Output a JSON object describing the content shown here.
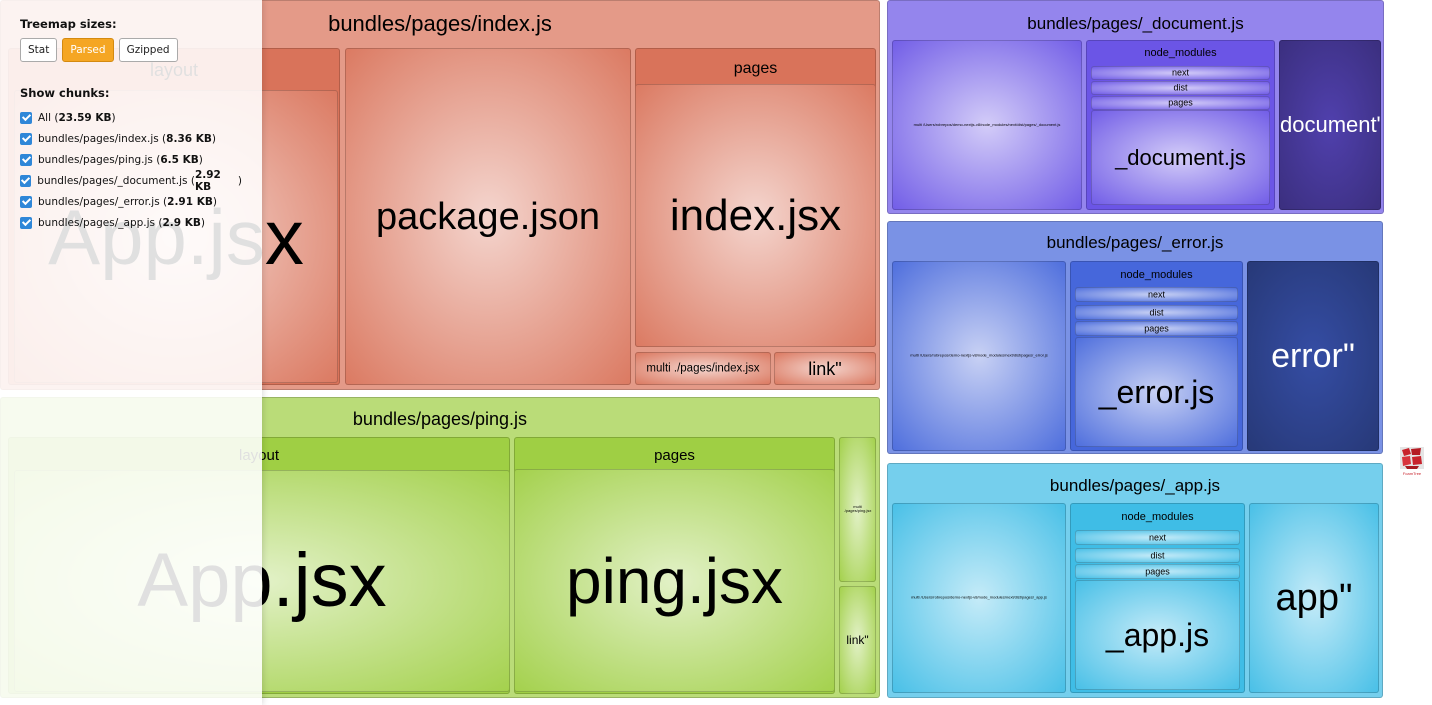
{
  "sidebar": {
    "sizes_title": "Treemap sizes:",
    "size_buttons": [
      {
        "label": "Stat",
        "active": false
      },
      {
        "label": "Parsed",
        "active": true
      },
      {
        "label": "Gzipped",
        "active": false
      }
    ],
    "chunks_title": "Show chunks:",
    "chunks": [
      {
        "name": "All",
        "size": "23.59 KB",
        "checked": true
      },
      {
        "name": "bundles/pages/index.js",
        "size": "8.36 KB",
        "checked": true
      },
      {
        "name": "bundles/pages/ping.js",
        "size": "6.5 KB",
        "checked": true
      },
      {
        "name": "bundles/pages/_document.js",
        "size": "2.92 KB",
        "checked": true
      },
      {
        "name": "bundles/pages/_error.js",
        "size": "2.91 KB",
        "checked": true
      },
      {
        "name": "bundles/pages/_app.js",
        "size": "2.9 KB",
        "checked": true
      }
    ]
  },
  "colors": {
    "index": "#d9735a",
    "ping": "#9fcf44",
    "document": "#6b55e6",
    "error": "#4667db",
    "app": "#3fbde6",
    "gray": "#d6d6d6"
  },
  "treemap": [
    {
      "id": "index",
      "label": "bundles/pages/index.js",
      "children": [
        {
          "id": "index-layout",
          "label": "layout",
          "children": [
            {
              "label": "App.jsx"
            }
          ]
        },
        {
          "label": "package.json"
        },
        {
          "id": "index-pages",
          "label": "pages",
          "children": [
            {
              "label": "index.jsx"
            }
          ]
        },
        {
          "label": "multi ./pages/index.jsx"
        },
        {
          "label": "link\""
        }
      ]
    },
    {
      "id": "ping",
      "label": "bundles/pages/ping.js",
      "children": [
        {
          "label": "layout",
          "children": [
            {
              "label": "App.jsx"
            }
          ]
        },
        {
          "label": "pages",
          "children": [
            {
              "label": "ping.jsx"
            }
          ]
        },
        {
          "label": "multi ./pages/ping.jsx"
        },
        {
          "label": "link\""
        }
      ]
    },
    {
      "id": "document",
      "label": "bundles/pages/_document.js",
      "children": [
        {
          "label": "multi /Users/robrepos/demo-nextjs-v8/node_modules/next/dist/pages/_document.js"
        },
        {
          "label": "node_modules",
          "children": [
            {
              "label": "next"
            },
            {
              "label": "dist"
            },
            {
              "label": "pages"
            },
            {
              "label": "_document.js"
            }
          ]
        },
        {
          "label": "document\""
        }
      ]
    },
    {
      "id": "error",
      "label": "bundles/pages/_error.js",
      "children": [
        {
          "label": "multi /Users/robrepos/demo-nextjs-v8/node_modules/next/dist/pages/_error.js"
        },
        {
          "label": "node_modules",
          "children": [
            {
              "label": "next"
            },
            {
              "label": "dist"
            },
            {
              "label": "pages"
            },
            {
              "label": "_error.js"
            }
          ]
        },
        {
          "label": "error\""
        }
      ]
    },
    {
      "id": "app",
      "label": "bundles/pages/_app.js",
      "children": [
        {
          "label": "multi /Users/robrepos/demo-nextjs-v8/node_modules/next/dist/pages/_app.js"
        },
        {
          "label": "node_modules",
          "children": [
            {
              "label": "next"
            },
            {
              "label": "dist"
            },
            {
              "label": "pages"
            },
            {
              "label": "_app.js"
            }
          ]
        },
        {
          "label": "app\""
        }
      ]
    }
  ],
  "footer": {
    "logo_text": "FoamTree"
  }
}
